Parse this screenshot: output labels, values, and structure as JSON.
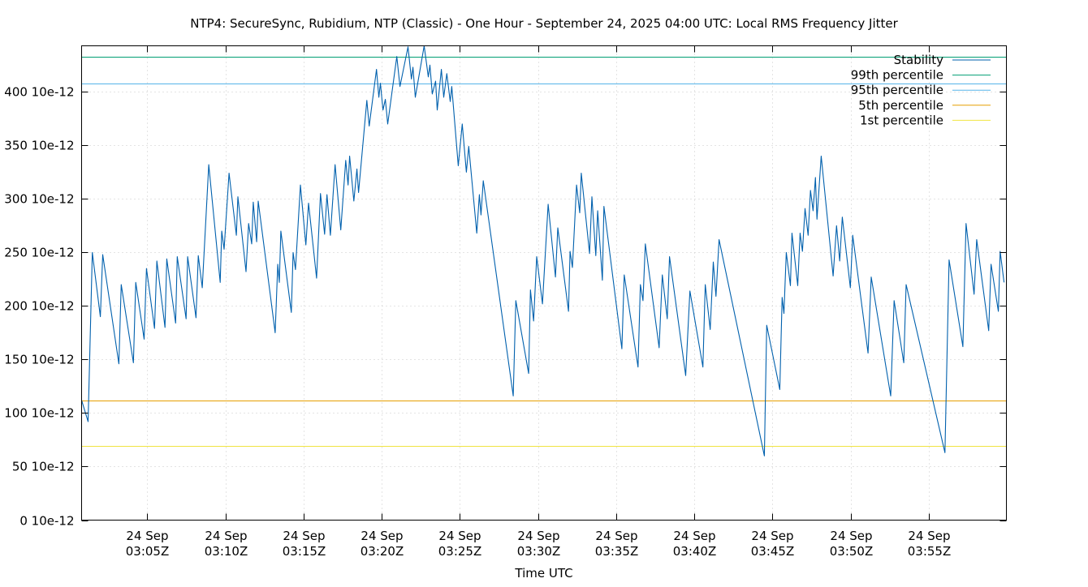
{
  "chart_data": {
    "type": "line",
    "title": "NTP4: SecureSync, Rubidium, NTP (Classic) - One Hour - September 24, 2025 04:00 UTC: Local RMS Frequency Jitter",
    "xlabel": "Time UTC",
    "ylabel": "",
    "xlim": [
      "03:00:48",
      "03:59:58"
    ],
    "ylim": [
      0,
      443
    ],
    "grid": true,
    "legend_placement": "top-right",
    "y_ticks": [
      {
        "value": 0,
        "label": "0 10e-12"
      },
      {
        "value": 50,
        "label": "50 10e-12"
      },
      {
        "value": 100,
        "label": "100 10e-12"
      },
      {
        "value": 150,
        "label": "150 10e-12"
      },
      {
        "value": 200,
        "label": "200 10e-12"
      },
      {
        "value": 250,
        "label": "250 10e-12"
      },
      {
        "value": 300,
        "label": "300 10e-12"
      },
      {
        "value": 350,
        "label": "350 10e-12"
      },
      {
        "value": 400,
        "label": "400 10e-12"
      }
    ],
    "x_ticks": [
      {
        "time": "03:05:00",
        "date": "24 Sep",
        "label": "03:05Z"
      },
      {
        "time": "03:10:00",
        "date": "24 Sep",
        "label": "03:10Z"
      },
      {
        "time": "03:15:00",
        "date": "24 Sep",
        "label": "03:15Z"
      },
      {
        "time": "03:20:00",
        "date": "24 Sep",
        "label": "03:20Z"
      },
      {
        "time": "03:25:00",
        "date": "24 Sep",
        "label": "03:25Z"
      },
      {
        "time": "03:30:00",
        "date": "24 Sep",
        "label": "03:30Z"
      },
      {
        "time": "03:35:00",
        "date": "24 Sep",
        "label": "03:35Z"
      },
      {
        "time": "03:40:00",
        "date": "24 Sep",
        "label": "03:40Z"
      },
      {
        "time": "03:45:00",
        "date": "24 Sep",
        "label": "03:45Z"
      },
      {
        "time": "03:50:00",
        "date": "24 Sep",
        "label": "03:50Z"
      },
      {
        "time": "03:55:00",
        "date": "24 Sep",
        "label": "03:55Z"
      }
    ],
    "reference_lines": [
      {
        "name": "99th percentile",
        "value": 433,
        "color": "#009e73"
      },
      {
        "name": "95th percentile",
        "value": 408,
        "color": "#56b4e9"
      },
      {
        "name": "5th percentile",
        "value": 112,
        "color": "#e69f00"
      },
      {
        "name": "1st percentile",
        "value": 69,
        "color": "#f0e442"
      }
    ],
    "series": [
      {
        "name": "Stability",
        "color": "#0060ad",
        "points": [
          [
            "03:00:48",
            112
          ],
          [
            "03:01:13",
            92
          ],
          [
            "03:01:29",
            250
          ],
          [
            "03:02:00",
            190
          ],
          [
            "03:02:09",
            248
          ],
          [
            "03:03:11",
            146
          ],
          [
            "03:03:20",
            220
          ],
          [
            "03:04:07",
            147
          ],
          [
            "03:04:16",
            222
          ],
          [
            "03:04:48",
            169
          ],
          [
            "03:04:57",
            235
          ],
          [
            "03:05:28",
            179
          ],
          [
            "03:05:37",
            242
          ],
          [
            "03:06:08",
            180
          ],
          [
            "03:06:15",
            244
          ],
          [
            "03:06:49",
            184
          ],
          [
            "03:06:55",
            246
          ],
          [
            "03:07:29",
            188
          ],
          [
            "03:07:35",
            246
          ],
          [
            "03:08:07",
            189
          ],
          [
            "03:08:16",
            247
          ],
          [
            "03:08:31",
            217
          ],
          [
            "03:08:56",
            332
          ],
          [
            "03:09:40",
            222
          ],
          [
            "03:09:46",
            270
          ],
          [
            "03:09:55",
            253
          ],
          [
            "03:10:14",
            324
          ],
          [
            "03:10:42",
            266
          ],
          [
            "03:10:48",
            302
          ],
          [
            "03:11:19",
            232
          ],
          [
            "03:11:29",
            277
          ],
          [
            "03:11:41",
            258
          ],
          [
            "03:11:47",
            297
          ],
          [
            "03:12:00",
            260
          ],
          [
            "03:12:06",
            298
          ],
          [
            "03:13:11",
            175
          ],
          [
            "03:13:21",
            239
          ],
          [
            "03:13:27",
            222
          ],
          [
            "03:13:33",
            270
          ],
          [
            "03:14:13",
            194
          ],
          [
            "03:14:20",
            250
          ],
          [
            "03:14:29",
            234
          ],
          [
            "03:14:48",
            313
          ],
          [
            "03:15:09",
            257
          ],
          [
            "03:15:19",
            296
          ],
          [
            "03:15:50",
            226
          ],
          [
            "03:16:05",
            305
          ],
          [
            "03:16:21",
            267
          ],
          [
            "03:16:30",
            304
          ],
          [
            "03:16:43",
            266
          ],
          [
            "03:17:01",
            332
          ],
          [
            "03:17:23",
            271
          ],
          [
            "03:17:42",
            336
          ],
          [
            "03:17:51",
            313
          ],
          [
            "03:17:57",
            340
          ],
          [
            "03:18:13",
            298
          ],
          [
            "03:18:25",
            328
          ],
          [
            "03:18:31",
            306
          ],
          [
            "03:19:03",
            392
          ],
          [
            "03:19:12",
            368
          ],
          [
            "03:19:40",
            421
          ],
          [
            "03:19:49",
            395
          ],
          [
            "03:19:55",
            408
          ],
          [
            "03:20:05",
            383
          ],
          [
            "03:20:14",
            393
          ],
          [
            "03:20:23",
            370
          ],
          [
            "03:20:58",
            433
          ],
          [
            "03:21:10",
            405
          ],
          [
            "03:21:41",
            442
          ],
          [
            "03:21:54",
            412
          ],
          [
            "03:22:00",
            423
          ],
          [
            "03:22:09",
            395
          ],
          [
            "03:22:43",
            443
          ],
          [
            "03:22:59",
            414
          ],
          [
            "03:23:05",
            425
          ],
          [
            "03:23:14",
            398
          ],
          [
            "03:23:27",
            410
          ],
          [
            "03:23:33",
            383
          ],
          [
            "03:23:49",
            421
          ],
          [
            "03:23:58",
            395
          ],
          [
            "03:24:10",
            417
          ],
          [
            "03:24:23",
            391
          ],
          [
            "03:24:29",
            405
          ],
          [
            "03:24:54",
            331
          ],
          [
            "03:25:09",
            370
          ],
          [
            "03:25:25",
            325
          ],
          [
            "03:25:34",
            349
          ],
          [
            "03:26:05",
            268
          ],
          [
            "03:26:15",
            304
          ],
          [
            "03:26:21",
            285
          ],
          [
            "03:26:30",
            317
          ],
          [
            "03:28:25",
            116
          ],
          [
            "03:28:35",
            205
          ],
          [
            "03:29:24",
            137
          ],
          [
            "03:29:31",
            215
          ],
          [
            "03:29:43",
            186
          ],
          [
            "03:29:55",
            246
          ],
          [
            "03:30:17",
            202
          ],
          [
            "03:30:39",
            295
          ],
          [
            "03:31:07",
            227
          ],
          [
            "03:31:16",
            273
          ],
          [
            "03:31:57",
            195
          ],
          [
            "03:32:03",
            251
          ],
          [
            "03:32:12",
            236
          ],
          [
            "03:32:28",
            313
          ],
          [
            "03:32:40",
            287
          ],
          [
            "03:32:46",
            324
          ],
          [
            "03:33:18",
            249
          ],
          [
            "03:33:27",
            302
          ],
          [
            "03:33:42",
            247
          ],
          [
            "03:33:49",
            289
          ],
          [
            "03:34:07",
            224
          ],
          [
            "03:34:13",
            293
          ],
          [
            "03:35:22",
            160
          ],
          [
            "03:35:31",
            229
          ],
          [
            "03:36:24",
            143
          ],
          [
            "03:36:33",
            220
          ],
          [
            "03:36:43",
            205
          ],
          [
            "03:36:52",
            258
          ],
          [
            "03:37:45",
            161
          ],
          [
            "03:37:57",
            229
          ],
          [
            "03:38:16",
            188
          ],
          [
            "03:38:25",
            246
          ],
          [
            "03:39:27",
            135
          ],
          [
            "03:39:43",
            214
          ],
          [
            "03:40:33",
            143
          ],
          [
            "03:40:42",
            220
          ],
          [
            "03:41:01",
            178
          ],
          [
            "03:41:13",
            241
          ],
          [
            "03:41:23",
            209
          ],
          [
            "03:41:35",
            262
          ],
          [
            "03:44:29",
            60
          ],
          [
            "03:44:38",
            182
          ],
          [
            "03:45:28",
            122
          ],
          [
            "03:45:37",
            208
          ],
          [
            "03:45:44",
            193
          ],
          [
            "03:45:53",
            250
          ],
          [
            "03:46:09",
            219
          ],
          [
            "03:46:15",
            268
          ],
          [
            "03:46:37",
            219
          ],
          [
            "03:46:46",
            268
          ],
          [
            "03:46:55",
            251
          ],
          [
            "03:47:05",
            291
          ],
          [
            "03:47:17",
            266
          ],
          [
            "03:47:26",
            308
          ],
          [
            "03:47:36",
            289
          ],
          [
            "03:47:45",
            320
          ],
          [
            "03:47:51",
            281
          ],
          [
            "03:48:07",
            340
          ],
          [
            "03:48:53",
            228
          ],
          [
            "03:49:06",
            275
          ],
          [
            "03:49:18",
            242
          ],
          [
            "03:49:28",
            283
          ],
          [
            "03:49:59",
            217
          ],
          [
            "03:50:08",
            266
          ],
          [
            "03:51:07",
            156
          ],
          [
            "03:51:19",
            227
          ],
          [
            "03:52:34",
            116
          ],
          [
            "03:52:47",
            205
          ],
          [
            "03:53:24",
            147
          ],
          [
            "03:53:33",
            220
          ],
          [
            "03:56:02",
            63
          ],
          [
            "03:56:18",
            243
          ],
          [
            "03:57:11",
            162
          ],
          [
            "03:57:23",
            277
          ],
          [
            "03:57:54",
            211
          ],
          [
            "03:58:04",
            262
          ],
          [
            "03:58:50",
            177
          ],
          [
            "03:58:59",
            239
          ],
          [
            "03:59:27",
            195
          ],
          [
            "03:59:34",
            251
          ],
          [
            "03:59:49",
            222
          ]
        ]
      }
    ],
    "legend": [
      {
        "label": "Stability",
        "color": "#0060ad"
      },
      {
        "label": "99th percentile",
        "color": "#009e73"
      },
      {
        "label": "95th percentile",
        "color": "#56b4e9"
      },
      {
        "label": "5th percentile",
        "color": "#e69f00"
      },
      {
        "label": "1st percentile",
        "color": "#f0e442"
      }
    ]
  }
}
